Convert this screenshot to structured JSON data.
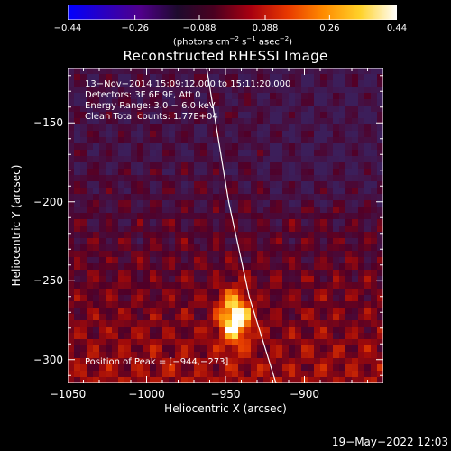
{
  "colorbar": {
    "ticks": [
      "−0.44",
      "−0.26",
      "−0.088",
      "0.088",
      "0.26",
      "0.44"
    ],
    "tick_values": [
      -0.44,
      -0.26,
      -0.088,
      0.088,
      0.26,
      0.44
    ],
    "range": [
      -0.44,
      0.44
    ],
    "units_main": "(photons cm",
    "units_e1": "−2",
    "units_s": " s",
    "units_e2": "−1",
    "units_a": " asec",
    "units_e3": "−2",
    "units_close": ")",
    "colormap": [
      "#0000ff",
      "#2a00c0",
      "#50008a",
      "#1e0a2e",
      "#4a0020",
      "#a80010",
      "#e83800",
      "#ff8c00",
      "#ffd22a",
      "#ffffff"
    ]
  },
  "title": "Reconstructed RHESSI Image",
  "info": {
    "time": "13−Nov−2014 15:09:12.000 to 15:11:20.000",
    "detectors": "Detectors: 3F 6F 9F, Att 0",
    "energy": "Energy Range: 3.0 − 6.0 keV",
    "clean": "Clean     Total counts: 1.77E+04"
  },
  "peak": "Position of Peak = [−944,−273]",
  "axes": {
    "xlabel": "Heliocentric X (arcsec)",
    "ylabel": "Heliocentric Y (arcsec)",
    "xticks": [
      "−1050",
      "−1000",
      "−950",
      "−900"
    ],
    "xtick_values": [
      -1050,
      -1000,
      -950,
      -900
    ],
    "yticks": [
      "−150",
      "−200",
      "−250",
      "−300"
    ],
    "ytick_values": [
      -150,
      -200,
      -250,
      -300
    ],
    "xlim": [
      -1050,
      -850
    ],
    "ylim": [
      -315,
      -115
    ]
  },
  "image": {
    "peak_xy": [
      -944,
      -273
    ],
    "limb_points": [
      [
        -962,
        -115
      ],
      [
        -948,
        -200
      ],
      [
        -935,
        -260
      ],
      [
        -918,
        -315
      ]
    ]
  },
  "datestamp": "19−May−2022 12:03"
}
